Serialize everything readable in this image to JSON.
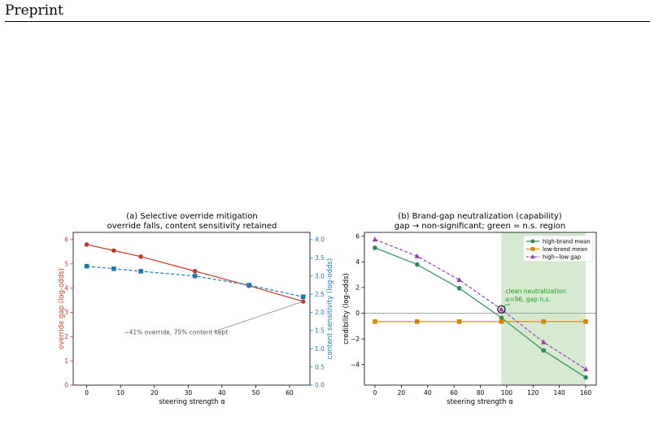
{
  "header": {
    "label": "Preprint"
  },
  "colors": {
    "override": "#c0392b",
    "content": "#1f77b4",
    "high_brand": "#2e8b57",
    "low_brand": "#d4850a",
    "gap": "#8e44ad",
    "ns_region": "#d6ead2",
    "ann_green": "#1e9a1e",
    "ann_grey": "#555555"
  },
  "chart_data": [
    {
      "type": "line",
      "title": "(a) Selective override mitigation",
      "subtitle": "override falls, content sensitivity retained",
      "xlabel": "steering strength α",
      "ylabel_left": "override gap (log-odds)",
      "ylabel_right": "content sensitivity (log-odds)",
      "xlim": [
        -4,
        66
      ],
      "ylim_left": [
        0,
        6.3
      ],
      "ylim_right": [
        0,
        4.2
      ],
      "xticks": [
        0,
        10,
        20,
        30,
        40,
        50,
        60
      ],
      "yticks_left": [
        0,
        1,
        2,
        3,
        4,
        5,
        6
      ],
      "yticks_right": [
        0.0,
        0.5,
        1.0,
        1.5,
        2.0,
        2.5,
        3.0,
        3.5,
        4.0
      ],
      "series": [
        {
          "axis": "left",
          "x": [
            0,
            8,
            16,
            32,
            48,
            64
          ],
          "values": [
            5.8,
            5.55,
            5.3,
            4.7,
            4.1,
            3.45
          ]
        },
        {
          "axis": "right",
          "x": [
            0,
            8,
            16,
            32,
            48,
            64
          ],
          "values": [
            3.27,
            3.2,
            3.13,
            3.0,
            2.75,
            2.43
          ]
        }
      ],
      "annotation": {
        "text": "−41% override, 75% content kept",
        "x": 11,
        "y": 2.1,
        "arrow_to_x": 64,
        "arrow_to_y": 3.45
      }
    },
    {
      "type": "line",
      "title": "(b) Brand-gap neutralization (capability)",
      "subtitle": "gap → non-significant; green = n.s. region",
      "xlabel": "steering strength α",
      "ylabel": "credibility (log-odds)",
      "xlim": [
        -8,
        168
      ],
      "ylim": [
        -5.6,
        6.3
      ],
      "xticks": [
        0,
        20,
        40,
        60,
        80,
        100,
        120,
        140,
        160
      ],
      "yticks": [
        -4,
        -2,
        0,
        2,
        4,
        6
      ],
      "ns_region": [
        96,
        160
      ],
      "series": [
        {
          "name": "high-brand mean",
          "x": [
            0,
            32,
            64,
            96,
            128,
            160
          ],
          "values": [
            5.1,
            3.8,
            1.95,
            -0.35,
            -2.9,
            -5.0
          ]
        },
        {
          "name": "low-brand mean",
          "x": [
            0,
            32,
            64,
            96,
            128,
            160
          ],
          "values": [
            -0.65,
            -0.65,
            -0.65,
            -0.65,
            -0.65,
            -0.65
          ]
        },
        {
          "name": "high−low gap",
          "x": [
            0,
            32,
            64,
            96,
            128,
            160
          ],
          "values": [
            5.75,
            4.45,
            2.6,
            0.3,
            -2.25,
            -4.35
          ]
        }
      ],
      "annotation": {
        "line1": "clean neutralization",
        "line2": "α=96, gap n.s.",
        "x": 99,
        "y": 1.55,
        "target_x": 96,
        "target_y": 0.3
      }
    }
  ]
}
